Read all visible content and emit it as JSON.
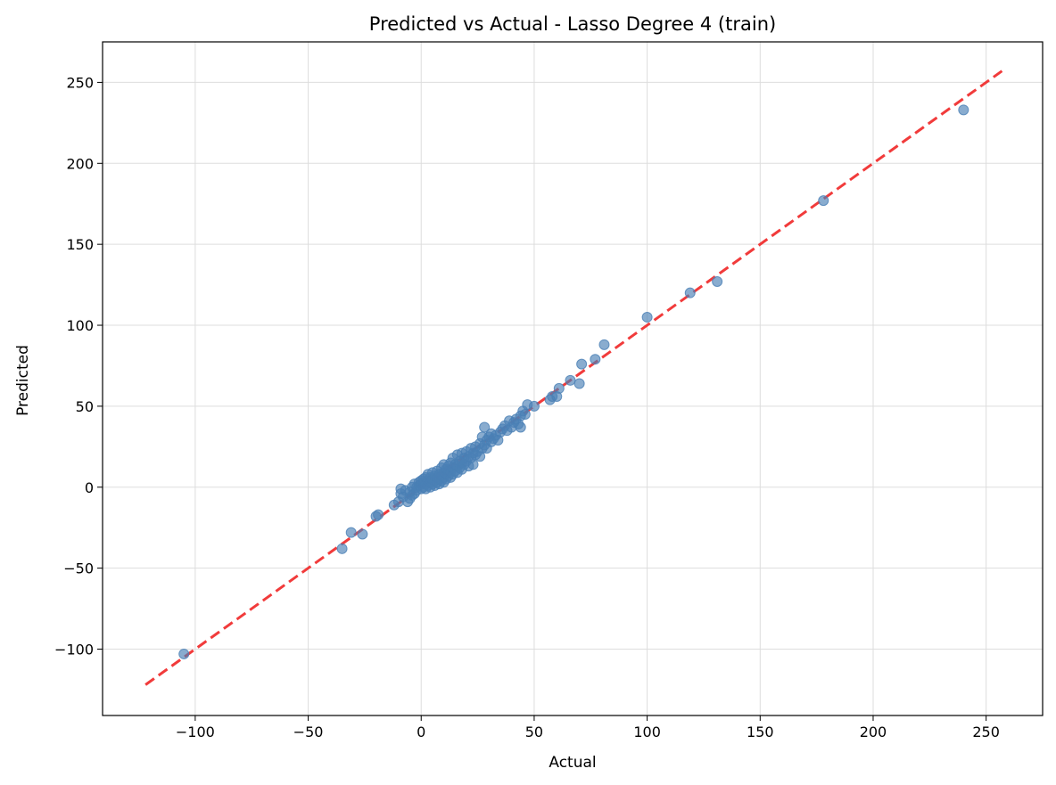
{
  "chart_data": {
    "type": "scatter",
    "title": "Predicted vs Actual - Lasso Degree 4 (train)",
    "xlabel": "Actual",
    "ylabel": "Predicted",
    "xlim": [
      -141,
      275
    ],
    "ylim": [
      -141,
      275
    ],
    "xticks": [
      -100,
      -50,
      0,
      50,
      100,
      150,
      200,
      250
    ],
    "yticks": [
      -100,
      -50,
      0,
      50,
      100,
      150,
      200,
      250
    ],
    "xtick_labels": [
      "−100",
      "−50",
      "0",
      "50",
      "100",
      "150",
      "200",
      "250"
    ],
    "ytick_labels": [
      "−100",
      "−50",
      "0",
      "50",
      "100",
      "150",
      "200",
      "250"
    ],
    "grid": true,
    "legend": "none",
    "colors": {
      "points": "#4a7fb5",
      "reference_line": "#f03030",
      "grid": "#dddddd"
    },
    "reference_line": {
      "style": "dashed",
      "x": [
        -122,
        257
      ],
      "y": [
        -122,
        257
      ]
    },
    "series": [
      {
        "points": [
          [
            -105,
            -103
          ],
          [
            -35,
            -38
          ],
          [
            -31,
            -28
          ],
          [
            -26,
            -29
          ],
          [
            -19,
            -17
          ],
          [
            -20,
            -18
          ],
          [
            -12,
            -11
          ],
          [
            -10,
            -9
          ],
          [
            -9,
            -4
          ],
          [
            -8,
            -6
          ],
          [
            -9,
            -1
          ],
          [
            -7,
            -2
          ],
          [
            -6,
            -9
          ],
          [
            -5,
            -7
          ],
          [
            -5,
            -3
          ],
          [
            -4,
            -5
          ],
          [
            -4,
            0
          ],
          [
            -3,
            -4
          ],
          [
            -3,
            2
          ],
          [
            -2,
            -2
          ],
          [
            -2,
            0
          ],
          [
            -1,
            1
          ],
          [
            -1,
            3
          ],
          [
            0,
            -1
          ],
          [
            0,
            2
          ],
          [
            0,
            4
          ],
          [
            1,
            0
          ],
          [
            1,
            3
          ],
          [
            1,
            5
          ],
          [
            2,
            -1
          ],
          [
            2,
            2
          ],
          [
            2,
            6
          ],
          [
            3,
            1
          ],
          [
            3,
            4
          ],
          [
            3,
            8
          ],
          [
            4,
            0
          ],
          [
            4,
            3
          ],
          [
            4,
            6
          ],
          [
            5,
            2
          ],
          [
            5,
            5
          ],
          [
            5,
            9
          ],
          [
            6,
            1
          ],
          [
            6,
            4
          ],
          [
            6,
            7
          ],
          [
            7,
            3
          ],
          [
            7,
            6
          ],
          [
            7,
            10
          ],
          [
            8,
            2
          ],
          [
            8,
            5
          ],
          [
            8,
            8
          ],
          [
            9,
            4
          ],
          [
            9,
            7
          ],
          [
            9,
            12
          ],
          [
            10,
            3
          ],
          [
            10,
            6
          ],
          [
            10,
            9
          ],
          [
            10,
            14
          ],
          [
            11,
            5
          ],
          [
            11,
            8
          ],
          [
            11,
            11
          ],
          [
            12,
            7
          ],
          [
            12,
            10
          ],
          [
            12,
            13
          ],
          [
            13,
            6
          ],
          [
            13,
            9
          ],
          [
            13,
            15
          ],
          [
            14,
            8
          ],
          [
            14,
            12
          ],
          [
            14,
            18
          ],
          [
            15,
            10
          ],
          [
            15,
            14
          ],
          [
            16,
            9
          ],
          [
            16,
            13
          ],
          [
            16,
            20
          ],
          [
            17,
            12
          ],
          [
            17,
            16
          ],
          [
            18,
            11
          ],
          [
            18,
            15
          ],
          [
            18,
            21
          ],
          [
            19,
            14
          ],
          [
            19,
            18
          ],
          [
            20,
            16
          ],
          [
            20,
            22
          ],
          [
            21,
            13
          ],
          [
            21,
            19
          ],
          [
            22,
            18
          ],
          [
            22,
            24
          ],
          [
            23,
            14
          ],
          [
            23,
            21
          ],
          [
            24,
            20
          ],
          [
            24,
            25
          ],
          [
            25,
            22
          ],
          [
            26,
            19
          ],
          [
            26,
            27
          ],
          [
            27,
            24
          ],
          [
            27,
            31
          ],
          [
            28,
            26
          ],
          [
            28,
            37
          ],
          [
            29,
            29
          ],
          [
            29,
            24
          ],
          [
            30,
            31
          ],
          [
            31,
            28
          ],
          [
            31,
            33
          ],
          [
            32,
            30
          ],
          [
            33,
            32
          ],
          [
            34,
            29
          ],
          [
            35,
            34
          ],
          [
            36,
            36
          ],
          [
            37,
            38
          ],
          [
            38,
            35
          ],
          [
            39,
            41
          ],
          [
            40,
            37
          ],
          [
            41,
            40
          ],
          [
            42,
            42
          ],
          [
            43,
            39
          ],
          [
            44,
            44
          ],
          [
            44,
            37
          ],
          [
            45,
            47
          ],
          [
            46,
            45
          ],
          [
            47,
            51
          ],
          [
            50,
            50
          ],
          [
            57,
            54
          ],
          [
            58,
            56
          ],
          [
            60,
            56
          ],
          [
            61,
            61
          ],
          [
            66,
            66
          ],
          [
            70,
            64
          ],
          [
            71,
            76
          ],
          [
            77,
            79
          ],
          [
            81,
            88
          ],
          [
            100,
            105
          ],
          [
            119,
            120
          ],
          [
            131,
            127
          ],
          [
            178,
            177
          ],
          [
            240,
            233
          ]
        ]
      }
    ]
  }
}
